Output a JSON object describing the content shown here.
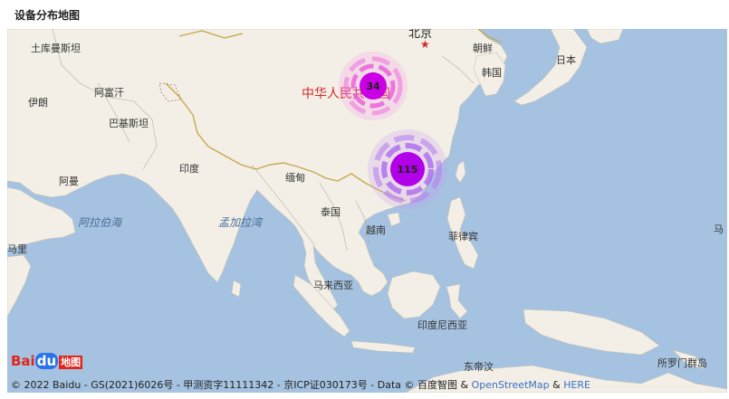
{
  "panel": {
    "title": "设备分布地图"
  },
  "map": {
    "provider": "Baidu Map",
    "capital": "北京",
    "country_label": "中华人民共和国",
    "labels": [
      {
        "id": "turkmenistan",
        "text": "土库曼斯坦"
      },
      {
        "id": "iran",
        "text": "伊朗"
      },
      {
        "id": "afghanistan",
        "text": "阿富汗"
      },
      {
        "id": "pakistan",
        "text": "巴基斯坦"
      },
      {
        "id": "india",
        "text": "印度"
      },
      {
        "id": "oman",
        "text": "阿曼"
      },
      {
        "id": "myanmar",
        "text": "缅甸"
      },
      {
        "id": "thailand",
        "text": "泰国"
      },
      {
        "id": "vietnam",
        "text": "越南"
      },
      {
        "id": "philippines",
        "text": "菲律宾"
      },
      {
        "id": "malaysia",
        "text": "马来西亚"
      },
      {
        "id": "indonesia",
        "text": "印度尼西亚"
      },
      {
        "id": "east-timor",
        "text": "东帝汶"
      },
      {
        "id": "solomon",
        "text": "所罗门群岛"
      },
      {
        "id": "korea-n",
        "text": "朝鲜"
      },
      {
        "id": "korea-s",
        "text": "韩国"
      },
      {
        "id": "japan",
        "text": "日本"
      },
      {
        "id": "somalia",
        "text": "马里"
      },
      {
        "id": "ma",
        "text": "马"
      }
    ],
    "seas": [
      {
        "id": "arabian-sea",
        "text": "阿拉伯海"
      },
      {
        "id": "bay-of-bengal",
        "text": "孟加拉湾"
      }
    ],
    "clusters": [
      {
        "id": "north",
        "count": "34",
        "color": "#e040e0"
      },
      {
        "id": "south",
        "count": "115",
        "color": "#b020e0"
      }
    ]
  },
  "copyright": {
    "text": "© 2022 Baidu - GS(2021)6026号 - 甲测资字11111342 - 京ICP证030173号 - Data © 百度智图 & ",
    "link1": "OpenStreetMap",
    "amp": " & ",
    "link2": "HERE"
  },
  "logo": {
    "brand": "Bai",
    "brand2": "du",
    "suffix": "地图"
  }
}
